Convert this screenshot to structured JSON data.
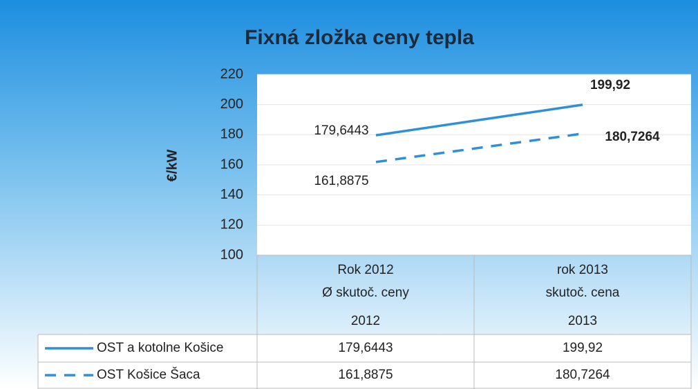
{
  "chart_data": {
    "type": "line",
    "title": "Fixná zložka ceny tepla",
    "y_label": "€/kW",
    "categories": [
      [
        "Rok 2012",
        "Ø skutoč. ceny",
        "2012"
      ],
      [
        "rok 2013",
        "skutoč. cena",
        "2013"
      ]
    ],
    "series": [
      {
        "name": "OST a kotolne Košice",
        "color": "#2f8fd8",
        "dash": false,
        "values": [
          179.6443,
          199.92
        ],
        "value_labels": [
          "179,6443",
          "199,92"
        ]
      },
      {
        "name": "OST Košice Šaca",
        "color": "#2f8fd8",
        "dash": true,
        "values": [
          161.8875,
          180.7264
        ],
        "value_labels": [
          "161,8875",
          "180,7264"
        ]
      }
    ],
    "ylim": [
      100,
      220
    ],
    "yticks": [
      100,
      120,
      140,
      160,
      180,
      200,
      220
    ],
    "grid": true
  }
}
